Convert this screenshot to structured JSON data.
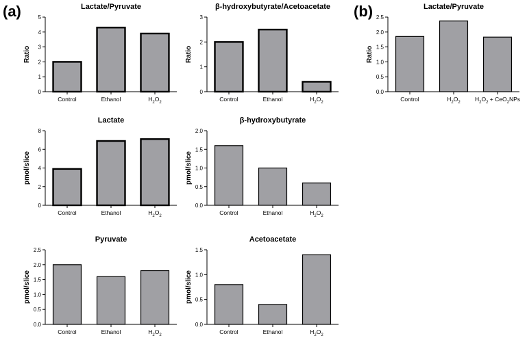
{
  "panel_labels": {
    "a": "(a)",
    "b": "(b)"
  },
  "colors": {
    "bar_fill": "#a0a0a4",
    "bar_stroke": "#000000",
    "text": "#000000"
  },
  "chart_data": [
    {
      "id": "lactate-pyruvate-a",
      "type": "bar",
      "title": "Lactate/Pyruvate",
      "ylabel": "Ratio",
      "categories": [
        "Control",
        "Ethanol",
        "H2O2"
      ],
      "values": [
        2.0,
        4.3,
        3.9
      ],
      "ylim": [
        0,
        5
      ],
      "yticks": [
        0,
        1,
        2,
        3,
        4,
        5
      ],
      "tick_labels": [
        "0",
        "1",
        "2",
        "3",
        "4",
        "5"
      ],
      "heavy": true
    },
    {
      "id": "bhb-acac-a",
      "type": "bar",
      "title": "β-hydroxybutyrate/Acetoacetate",
      "ylabel": "Ratio",
      "categories": [
        "Control",
        "Ethanol",
        "H2O2"
      ],
      "values": [
        2.0,
        2.5,
        0.4
      ],
      "ylim": [
        0,
        3
      ],
      "yticks": [
        0,
        1,
        2,
        3
      ],
      "tick_labels": [
        "0",
        "1",
        "2",
        "3"
      ],
      "heavy": true
    },
    {
      "id": "lactate-pyruvate-b",
      "type": "bar",
      "title": "Lactate/Pyruvate",
      "ylabel": "Ratio",
      "categories": [
        "Control",
        "H2O2",
        "H2O2 + CeO2NPs"
      ],
      "values": [
        1.85,
        2.37,
        1.83
      ],
      "ylim": [
        0,
        2.5
      ],
      "yticks": [
        0,
        0.5,
        1,
        1.5,
        2,
        2.5
      ],
      "tick_labels": [
        "0.0",
        "0.5",
        "1.0",
        "1.5",
        "2.0",
        "2.5"
      ],
      "heavy": false
    },
    {
      "id": "lactate-a",
      "type": "bar",
      "title": "Lactate",
      "ylabel": "pmol/slice",
      "categories": [
        "Control",
        "Ethanol",
        "H2O2"
      ],
      "values": [
        3.9,
        6.9,
        7.1
      ],
      "ylim": [
        0,
        8
      ],
      "yticks": [
        0,
        2,
        4,
        6,
        8
      ],
      "tick_labels": [
        "0",
        "2",
        "4",
        "6",
        "8"
      ],
      "heavy": true
    },
    {
      "id": "bhb-a",
      "type": "bar",
      "title": "β-hydroxybutyrate",
      "ylabel": "pmol/slice",
      "categories": [
        "Control",
        "Ethanol",
        "H2O2"
      ],
      "values": [
        1.6,
        1.0,
        0.6
      ],
      "ylim": [
        0,
        2
      ],
      "yticks": [
        0,
        0.5,
        1,
        1.5,
        2
      ],
      "tick_labels": [
        "0.0",
        "0.5",
        "1.0",
        "1.5",
        "2.0"
      ],
      "heavy": false
    },
    {
      "id": "pyruvate-a",
      "type": "bar",
      "title": "Pyruvate",
      "ylabel": "pmol/slice",
      "categories": [
        "Control",
        "Ethanol",
        "H2O2"
      ],
      "values": [
        2.0,
        1.6,
        1.8
      ],
      "ylim": [
        0,
        2.5
      ],
      "yticks": [
        0,
        0.5,
        1,
        1.5,
        2,
        2.5
      ],
      "tick_labels": [
        "0.0",
        "0.5",
        "1.0",
        "1.5",
        "2.0",
        "2.5"
      ],
      "heavy": false
    },
    {
      "id": "acetoacetate-a",
      "type": "bar",
      "title": "Acetoacetate",
      "ylabel": "pmol/slice",
      "categories": [
        "Control",
        "Ethanol",
        "H2O2"
      ],
      "values": [
        0.8,
        0.4,
        1.4
      ],
      "ylim": [
        0,
        1.5
      ],
      "yticks": [
        0,
        0.5,
        1,
        1.5
      ],
      "tick_labels": [
        "0.0",
        "0.5",
        "1.0",
        "1.5"
      ],
      "heavy": false
    }
  ]
}
